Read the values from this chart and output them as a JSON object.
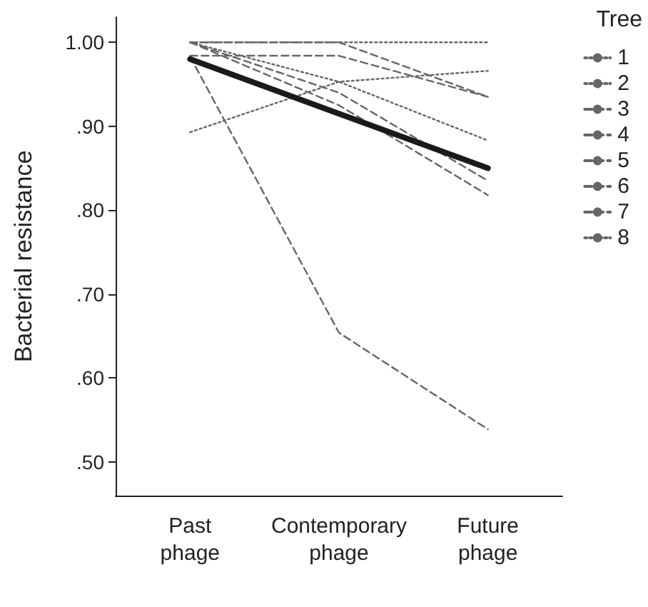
{
  "chart_data": {
    "type": "line",
    "ylabel": "Bacterial resistance",
    "legend_title": "Tree",
    "legend": "top right",
    "grid": false,
    "marker": "none",
    "categories": [
      "Past\nphage",
      "Contemporary\nphage",
      "Future\nphage"
    ],
    "ylim": [
      0.46,
      1.03
    ],
    "yticks": [
      {
        "value": 0.5,
        "label": ".50"
      },
      {
        "value": 0.6,
        "label": ".60"
      },
      {
        "value": 0.7,
        "label": ".70"
      },
      {
        "value": 0.8,
        "label": ".80"
      },
      {
        "value": 0.9,
        "label": ".90"
      },
      {
        "value": 1.0,
        "label": "1.00"
      }
    ],
    "series": [
      {
        "name": "1",
        "color": "#666666",
        "line_style": "dotted",
        "values": [
          0.893,
          0.953,
          0.966
        ]
      },
      {
        "name": "2",
        "color": "#666666",
        "line_style": "dotted",
        "values": [
          1.0,
          0.953,
          0.883
        ]
      },
      {
        "name": "3",
        "color": "#666666",
        "line_style": "dashed",
        "values": [
          1.0,
          0.925,
          0.818
        ]
      },
      {
        "name": "4",
        "color": "#666666",
        "line_style": "dashed",
        "values": [
          0.983,
          0.654,
          0.539
        ]
      },
      {
        "name": "5",
        "color": "#666666",
        "line_style": "dashed",
        "values": [
          1.0,
          0.94,
          0.835
        ]
      },
      {
        "name": "6",
        "color": "#666666",
        "line_style": "dashed",
        "values": [
          0.984,
          0.984,
          0.935
        ]
      },
      {
        "name": "7",
        "color": "#666666",
        "line_style": "dashed",
        "values": [
          1.0,
          1.0,
          0.935
        ]
      },
      {
        "name": "8",
        "color": "#666666",
        "line_style": "dotted",
        "values": [
          1.0,
          1.0,
          1.0
        ]
      },
      {
        "color": "#1a1a1a",
        "line_style": "solid",
        "values": [
          0.98,
          0.915,
          0.85
        ]
      }
    ]
  }
}
